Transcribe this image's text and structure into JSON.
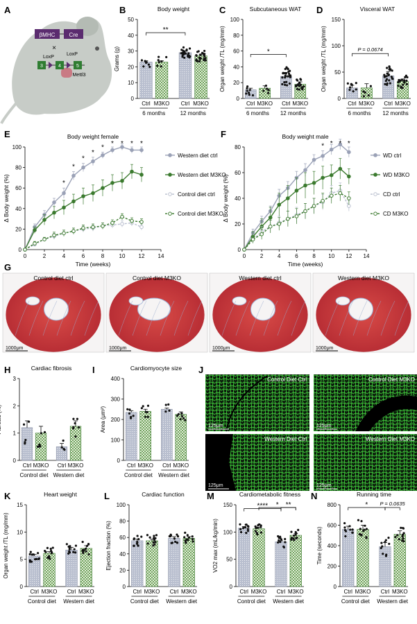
{
  "colors": {
    "ctrl": "#9aa1b6",
    "m3ko": "#3b7a2e",
    "ctrl_light": "#b9bfcf",
    "m3ko_light": "#6fa25c",
    "tissue": "#c9383c",
    "collagen": "#9fb4d8",
    "fluor": "#3fc83a"
  },
  "panel_letters": [
    "A",
    "B",
    "C",
    "D",
    "E",
    "F",
    "G",
    "H",
    "I",
    "J",
    "K",
    "L",
    "M",
    "N"
  ],
  "schematic": {
    "gene1": "βMHC",
    "gene2": "Cre",
    "cross": "×",
    "loxp1": "LoxP",
    "loxp2": "LoxP",
    "exons": [
      "3",
      "4",
      "5"
    ],
    "gene3": "Mettl3"
  },
  "histology": {
    "labels": [
      "Control diet ctrl",
      "Control diet M3KO",
      "Western diet ctrl",
      "Western diet M3KO"
    ],
    "scale": "1000μm"
  },
  "fluorescence": {
    "labels": [
      "Control Diet Ctrl",
      "Control Diet M3KO",
      "Western Diet Ctrl",
      "Western Diet M3KO"
    ],
    "scale": "125μm"
  },
  "chart_data": [
    {
      "id": "B",
      "type": "bar",
      "title": "Body weight",
      "ylabel": "Grams (g)",
      "ylim": [
        0,
        50
      ],
      "yticks": [
        0,
        10,
        20,
        30,
        40,
        50
      ],
      "categories": [
        "Ctrl",
        "M3KO",
        "Ctrl",
        "M3KO"
      ],
      "groups": [
        "6 months",
        "12 months"
      ],
      "values": [
        23,
        23,
        29,
        27
      ],
      "errors": [
        0.8,
        0.8,
        1.2,
        1.0
      ],
      "points": [
        7,
        7,
        24,
        24
      ],
      "annotations": [
        {
          "between": [
            0,
            2
          ],
          "text": "**"
        }
      ]
    },
    {
      "id": "C",
      "type": "bar",
      "title": "Subcutaneous WAT",
      "ylabel": "Organ weight /TL (mg/mm)",
      "ylim": [
        0,
        100
      ],
      "yticks": [
        0,
        20,
        40,
        60,
        80,
        100
      ],
      "categories": [
        "Ctrl",
        "M3KO",
        "Ctrl",
        "M3KO"
      ],
      "groups": [
        "6 months",
        "12 months"
      ],
      "values": [
        11,
        13,
        28,
        18
      ],
      "errors": [
        2,
        3,
        5,
        3
      ],
      "points": [
        8,
        5,
        26,
        20
      ],
      "annotations": [
        {
          "between": [
            0,
            2
          ],
          "text": "*"
        }
      ]
    },
    {
      "id": "D",
      "type": "bar",
      "title": "Visceral WAT",
      "ylabel": "Organ weight /TL (mg/mm)",
      "ylim": [
        0,
        150
      ],
      "yticks": [
        0,
        50,
        100,
        150
      ],
      "categories": [
        "Ctrl",
        "M3KO",
        "Ctrl",
        "M3KO"
      ],
      "groups": [
        "6 months",
        "12 months"
      ],
      "values": [
        20,
        20,
        43,
        32
      ],
      "errors": [
        5,
        8,
        8,
        5
      ],
      "points": [
        8,
        5,
        24,
        18
      ],
      "annotations": [
        {
          "between": [
            0,
            2
          ],
          "text": "P = 0.0674"
        }
      ]
    },
    {
      "id": "E",
      "type": "line",
      "title": "Body weight female",
      "xlabel": "Time (weeks)",
      "ylabel": "Δ Body weight (%)",
      "xlim": [
        0,
        14
      ],
      "ylim": [
        0,
        100
      ],
      "xticks": [
        0,
        2,
        4,
        6,
        8,
        10,
        12,
        14
      ],
      "yticks": [
        0,
        20,
        40,
        60,
        80,
        100
      ],
      "x": [
        0,
        1,
        2,
        3,
        4,
        5,
        6,
        7,
        8,
        9,
        10,
        11,
        12
      ],
      "series": [
        {
          "name": "Western diet ctrl",
          "style": "ctrl",
          "dash": false,
          "values": [
            0,
            22,
            34,
            46,
            55,
            72,
            80,
            86,
            92,
            97,
            100,
            97,
            97
          ],
          "err": [
            0,
            3,
            4,
            4,
            5,
            4,
            4,
            4,
            3,
            3,
            3,
            3,
            3
          ]
        },
        {
          "name": "Western diet M3KO",
          "style": "m3ko",
          "dash": false,
          "values": [
            0,
            19,
            29,
            36,
            41,
            47,
            52,
            55,
            60,
            65,
            67,
            76,
            73
          ],
          "err": [
            0,
            3,
            5,
            6,
            7,
            7,
            8,
            8,
            8,
            8,
            8,
            7,
            7
          ]
        },
        {
          "name": "Control diet ctrl",
          "style": "ctrl",
          "dash": true,
          "values": [
            0,
            5,
            10,
            13,
            16,
            18,
            20,
            21,
            23,
            24,
            25,
            26,
            22
          ],
          "err": [
            0,
            2,
            2,
            3,
            3,
            3,
            3,
            3,
            3,
            3,
            3,
            3,
            3
          ]
        },
        {
          "name": "Control diet M3KO",
          "style": "m3ko",
          "dash": true,
          "values": [
            0,
            6,
            10,
            14,
            16,
            18,
            21,
            22,
            23,
            26,
            32,
            28,
            27
          ],
          "err": [
            0,
            2,
            2,
            3,
            3,
            3,
            3,
            3,
            3,
            3,
            3,
            3,
            3
          ]
        }
      ],
      "stars_x": [
        4,
        5,
        6,
        7,
        8,
        9,
        10,
        11,
        12
      ],
      "stars_text": "*"
    },
    {
      "id": "F",
      "type": "line",
      "title": "Body weight male",
      "xlabel": "Time (weeks)",
      "ylabel": "Δ Body weight (%)",
      "xlim": [
        0,
        14
      ],
      "ylim": [
        0,
        80
      ],
      "xticks": [
        0,
        2,
        4,
        6,
        8,
        10,
        12,
        14
      ],
      "yticks": [
        0,
        20,
        40,
        60,
        80
      ],
      "x": [
        0,
        1,
        2,
        3,
        4,
        5,
        6,
        7,
        8,
        9,
        10,
        11,
        12
      ],
      "series": [
        {
          "name": "WD ctrl",
          "style": "ctrl",
          "dash": false,
          "values": [
            0,
            13,
            22,
            30,
            42,
            48,
            56,
            62,
            70,
            73,
            78,
            82,
            76
          ],
          "err": [
            0,
            3,
            4,
            4,
            5,
            5,
            5,
            5,
            4,
            4,
            4,
            4,
            4
          ]
        },
        {
          "name": "WD M3KO",
          "style": "m3ko",
          "dash": false,
          "values": [
            0,
            10,
            18,
            25,
            35,
            40,
            46,
            50,
            52,
            56,
            58,
            63,
            57
          ],
          "err": [
            0,
            4,
            6,
            8,
            9,
            10,
            10,
            10,
            9,
            9,
            8,
            8,
            6
          ]
        },
        {
          "name": "CD ctrl",
          "style": "ctrl",
          "dash": true,
          "values": [
            0,
            8,
            14,
            18,
            21,
            24,
            27,
            30,
            34,
            37,
            44,
            46,
            34
          ],
          "err": [
            0,
            3,
            4,
            5,
            5,
            6,
            6,
            6,
            6,
            6,
            6,
            6,
            4
          ]
        },
        {
          "name": "CD M3KO",
          "style": "m3ko",
          "dash": true,
          "values": [
            0,
            8,
            12,
            18,
            20,
            24,
            26,
            30,
            34,
            38,
            42,
            44,
            40
          ],
          "err": [
            0,
            3,
            4,
            5,
            5,
            6,
            6,
            6,
            6,
            6,
            6,
            6,
            5
          ]
        }
      ],
      "stars_x": [
        9,
        10,
        11,
        12
      ],
      "stars_text": "*"
    },
    {
      "id": "H",
      "type": "bar",
      "title": "Cardiac fibrosis",
      "ylabel": "Fibrosis (%)",
      "ylim": [
        0,
        3
      ],
      "yticks": [
        0,
        1,
        2,
        3
      ],
      "categories": [
        "Ctrl",
        "M3KO",
        "Ctrl",
        "M3KO"
      ],
      "groups": [
        "Control diet",
        "Western diet"
      ],
      "values": [
        1.2,
        1.0,
        0.5,
        1.25
      ],
      "errors": [
        0.25,
        0.25,
        0.12,
        0.2
      ],
      "points": [
        5,
        7,
        4,
        7
      ],
      "annotations": []
    },
    {
      "id": "I",
      "type": "bar",
      "title": "Cardiomyocyte size",
      "ylabel": "Area (μm²)",
      "ylim": [
        0,
        400
      ],
      "yticks": [
        0,
        100,
        200,
        300,
        400
      ],
      "categories": [
        "Ctrl",
        "M3KO",
        "Ctrl",
        "M3KO"
      ],
      "groups": [
        "Control diet",
        "Western diet"
      ],
      "values": [
        235,
        240,
        250,
        225
      ],
      "errors": [
        8,
        10,
        6,
        12
      ],
      "points": [
        6,
        7,
        4,
        7
      ],
      "annotations": []
    },
    {
      "id": "K",
      "type": "bar",
      "title": "Heart weight",
      "ylabel": "Organ weight /TL (mg/mm)",
      "ylim": [
        0,
        15
      ],
      "yticks": [
        0,
        5,
        10,
        15
      ],
      "categories": [
        "Ctrl",
        "M3KO",
        "Ctrl",
        "M3KO"
      ],
      "groups": [
        "Control diet",
        "Western diet"
      ],
      "values": [
        5.6,
        6.1,
        6.7,
        7.0
      ],
      "errors": [
        0.3,
        0.3,
        0.5,
        0.5
      ],
      "points": [
        12,
        12,
        12,
        12
      ],
      "annotations": []
    },
    {
      "id": "L",
      "type": "bar",
      "title": "Cardiac function",
      "ylabel": "Ejection fraction (%)",
      "ylim": [
        0,
        100
      ],
      "yticks": [
        0,
        20,
        40,
        60,
        80,
        100
      ],
      "categories": [
        "Ctrl",
        "M3KO",
        "Ctrl",
        "M3KO"
      ],
      "groups": [
        "Control diet",
        "Western diet"
      ],
      "values": [
        56,
        56,
        59,
        59
      ],
      "errors": [
        2,
        2,
        2,
        2
      ],
      "points": [
        12,
        12,
        12,
        12
      ],
      "annotations": []
    },
    {
      "id": "M",
      "type": "bar",
      "title": "Cardiometabolic fitness",
      "ylabel": "VO2 max (mL/kg/min)",
      "ylim": [
        0,
        150
      ],
      "yticks": [
        0,
        50,
        100,
        150
      ],
      "categories": [
        "Ctrl",
        "M3KO",
        "Ctrl",
        "M3KO"
      ],
      "groups": [
        "Control diet",
        "Western diet"
      ],
      "values": [
        107,
        106,
        82,
        94
      ],
      "errors": [
        3,
        3,
        2,
        3
      ],
      "points": [
        12,
        12,
        12,
        12
      ],
      "annotations": [
        {
          "between": [
            0,
            2
          ],
          "text": "****"
        },
        {
          "between": [
            2,
            3
          ],
          "text": "**"
        },
        {
          "between": [
            1,
            3
          ],
          "text": "*"
        }
      ]
    },
    {
      "id": "N",
      "type": "bar",
      "title": "Running time",
      "ylabel": "Time (seconds)",
      "ylim": [
        0,
        800
      ],
      "yticks": [
        0,
        200,
        400,
        600,
        800
      ],
      "categories": [
        "Ctrl",
        "M3KO",
        "Ctrl",
        "M3KO"
      ],
      "groups": [
        "Control diet",
        "Western diet"
      ],
      "values": [
        560,
        560,
        390,
        510
      ],
      "errors": [
        30,
        40,
        40,
        35
      ],
      "points": [
        10,
        12,
        10,
        12
      ],
      "annotations": [
        {
          "between": [
            0,
            2
          ],
          "text": "*"
        },
        {
          "between": [
            2,
            3
          ],
          "text": "P = 0.0635"
        }
      ]
    }
  ]
}
